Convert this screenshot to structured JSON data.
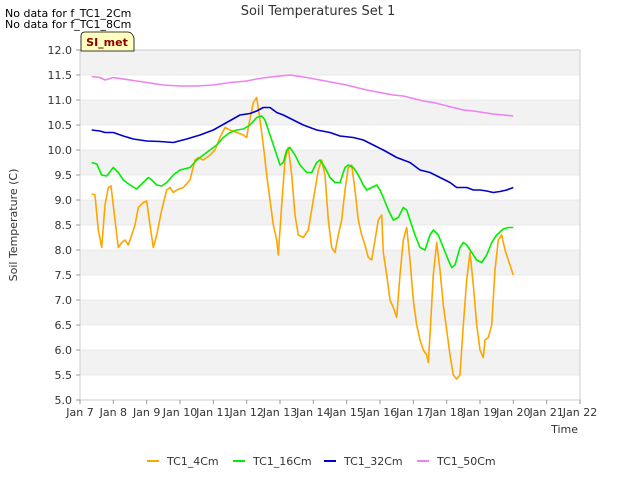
{
  "chart_data": {
    "type": "line",
    "title": "Soil Temperatures Set 1",
    "xlabel": "Time",
    "ylabel": "Soil Temperature (C)",
    "no_data_notes": [
      "No data for f_TC1_2Cm",
      "No data for f_TC1_8Cm"
    ],
    "site_badge": "SI_met",
    "xlim": [
      7,
      22
    ],
    "ylim": [
      5.0,
      12.0
    ],
    "x_ticks": [
      {
        "value": 7,
        "label": "Jan 7"
      },
      {
        "value": 8,
        "label": "Jan 8"
      },
      {
        "value": 9,
        "label": "Jan 9"
      },
      {
        "value": 10,
        "label": "Jan 10"
      },
      {
        "value": 11,
        "label": "Jan 11"
      },
      {
        "value": 12,
        "label": "Jan 12"
      },
      {
        "value": 13,
        "label": "Jan 13"
      },
      {
        "value": 14,
        "label": "Jan 14"
      },
      {
        "value": 15,
        "label": "Jan 15"
      },
      {
        "value": 16,
        "label": "Jan 16"
      },
      {
        "value": 17,
        "label": "Jan 17"
      },
      {
        "value": 18,
        "label": "Jan 18"
      },
      {
        "value": 19,
        "label": "Jan 19"
      },
      {
        "value": 20,
        "label": "Jan 20"
      },
      {
        "value": 21,
        "label": "Jan 21"
      },
      {
        "value": 22,
        "label": "Jan 22"
      }
    ],
    "y_ticks": [
      5.0,
      5.5,
      6.0,
      6.5,
      7.0,
      7.5,
      8.0,
      8.5,
      9.0,
      9.5,
      10.0,
      10.5,
      11.0,
      11.5,
      12.0
    ],
    "y_tick_labels": [
      "5.0",
      "5.5",
      "6.0",
      "6.5",
      "7.0",
      "7.5",
      "8.0",
      "8.5",
      "9.0",
      "9.5",
      "10.0",
      "10.5",
      "11.0",
      "11.5",
      "12.0"
    ],
    "colors": {
      "band": "#f2f2f2",
      "grid": "#dddddd",
      "axis": "#cccccc",
      "text": "#333333",
      "badge_fill": "#ffffc0",
      "badge_text": "#8b0000"
    },
    "series": [
      {
        "name": "TC1_4Cm",
        "color": "#ffa500",
        "points": [
          [
            7.35,
            9.12
          ],
          [
            7.45,
            9.1
          ],
          [
            7.55,
            8.4
          ],
          [
            7.65,
            8.05
          ],
          [
            7.75,
            8.9
          ],
          [
            7.85,
            9.25
          ],
          [
            7.93,
            9.28
          ],
          [
            8.05,
            8.6
          ],
          [
            8.15,
            8.05
          ],
          [
            8.25,
            8.15
          ],
          [
            8.35,
            8.2
          ],
          [
            8.45,
            8.1
          ],
          [
            8.55,
            8.3
          ],
          [
            8.65,
            8.5
          ],
          [
            8.75,
            8.85
          ],
          [
            8.9,
            8.95
          ],
          [
            9.0,
            8.98
          ],
          [
            9.1,
            8.5
          ],
          [
            9.2,
            8.05
          ],
          [
            9.3,
            8.3
          ],
          [
            9.45,
            8.8
          ],
          [
            9.6,
            9.2
          ],
          [
            9.7,
            9.25
          ],
          [
            9.8,
            9.15
          ],
          [
            9.9,
            9.2
          ],
          [
            10.1,
            9.25
          ],
          [
            10.3,
            9.4
          ],
          [
            10.45,
            9.8
          ],
          [
            10.55,
            9.85
          ],
          [
            10.7,
            9.8
          ],
          [
            10.9,
            9.9
          ],
          [
            11.05,
            10.0
          ],
          [
            11.2,
            10.25
          ],
          [
            11.35,
            10.45
          ],
          [
            11.5,
            10.4
          ],
          [
            11.7,
            10.35
          ],
          [
            11.9,
            10.3
          ],
          [
            12.0,
            10.25
          ],
          [
            12.05,
            10.45
          ],
          [
            12.2,
            10.95
          ],
          [
            12.3,
            11.05
          ],
          [
            12.4,
            10.6
          ],
          [
            12.5,
            10.1
          ],
          [
            12.6,
            9.5
          ],
          [
            12.7,
            9.0
          ],
          [
            12.8,
            8.5
          ],
          [
            12.9,
            8.2
          ],
          [
            12.95,
            7.9
          ],
          [
            13.05,
            8.9
          ],
          [
            13.15,
            9.8
          ],
          [
            13.25,
            10.05
          ],
          [
            13.35,
            9.5
          ],
          [
            13.45,
            8.7
          ],
          [
            13.55,
            8.3
          ],
          [
            13.7,
            8.25
          ],
          [
            13.85,
            8.4
          ],
          [
            14.0,
            9.0
          ],
          [
            14.15,
            9.6
          ],
          [
            14.25,
            9.8
          ],
          [
            14.35,
            9.5
          ],
          [
            14.45,
            8.6
          ],
          [
            14.55,
            8.05
          ],
          [
            14.65,
            7.95
          ],
          [
            14.75,
            8.3
          ],
          [
            14.85,
            8.6
          ],
          [
            14.95,
            9.2
          ],
          [
            15.05,
            9.65
          ],
          [
            15.15,
            9.7
          ],
          [
            15.25,
            9.2
          ],
          [
            15.35,
            8.6
          ],
          [
            15.45,
            8.3
          ],
          [
            15.55,
            8.1
          ],
          [
            15.65,
            7.85
          ],
          [
            15.75,
            7.8
          ],
          [
            15.85,
            8.2
          ],
          [
            15.95,
            8.6
          ],
          [
            16.05,
            8.7
          ],
          [
            16.1,
            7.95
          ],
          [
            16.2,
            7.5
          ],
          [
            16.3,
            7.0
          ],
          [
            16.4,
            6.85
          ],
          [
            16.5,
            6.65
          ],
          [
            16.6,
            7.5
          ],
          [
            16.7,
            8.2
          ],
          [
            16.8,
            8.45
          ],
          [
            16.9,
            7.8
          ],
          [
            17.0,
            7.0
          ],
          [
            17.1,
            6.5
          ],
          [
            17.2,
            6.2
          ],
          [
            17.3,
            6.0
          ],
          [
            17.4,
            5.9
          ],
          [
            17.45,
            5.75
          ],
          [
            17.5,
            6.3
          ],
          [
            17.6,
            7.5
          ],
          [
            17.7,
            8.15
          ],
          [
            17.8,
            7.6
          ],
          [
            17.9,
            6.9
          ],
          [
            18.0,
            6.4
          ],
          [
            18.1,
            5.9
          ],
          [
            18.2,
            5.5
          ],
          [
            18.3,
            5.42
          ],
          [
            18.4,
            5.5
          ],
          [
            18.5,
            6.5
          ],
          [
            18.6,
            7.4
          ],
          [
            18.7,
            7.95
          ],
          [
            18.8,
            7.3
          ],
          [
            18.9,
            6.5
          ],
          [
            19.0,
            6.0
          ],
          [
            19.1,
            5.85
          ],
          [
            19.15,
            6.2
          ],
          [
            19.25,
            6.25
          ],
          [
            19.35,
            6.5
          ],
          [
            19.45,
            7.6
          ],
          [
            19.55,
            8.2
          ],
          [
            19.65,
            8.3
          ],
          [
            19.75,
            8.0
          ],
          [
            19.85,
            7.8
          ],
          [
            20.0,
            7.5
          ]
        ]
      },
      {
        "name": "TC1_16Cm",
        "color": "#00ee00",
        "points": [
          [
            7.35,
            9.75
          ],
          [
            7.5,
            9.72
          ],
          [
            7.65,
            9.5
          ],
          [
            7.8,
            9.48
          ],
          [
            8.0,
            9.65
          ],
          [
            8.15,
            9.55
          ],
          [
            8.3,
            9.4
          ],
          [
            8.5,
            9.3
          ],
          [
            8.7,
            9.22
          ],
          [
            8.9,
            9.35
          ],
          [
            9.05,
            9.45
          ],
          [
            9.15,
            9.4
          ],
          [
            9.3,
            9.3
          ],
          [
            9.45,
            9.28
          ],
          [
            9.6,
            9.35
          ],
          [
            9.8,
            9.5
          ],
          [
            10.0,
            9.6
          ],
          [
            10.3,
            9.65
          ],
          [
            10.5,
            9.8
          ],
          [
            10.7,
            9.9
          ],
          [
            10.9,
            10.0
          ],
          [
            11.1,
            10.1
          ],
          [
            11.3,
            10.25
          ],
          [
            11.5,
            10.35
          ],
          [
            11.7,
            10.4
          ],
          [
            11.9,
            10.42
          ],
          [
            12.1,
            10.5
          ],
          [
            12.3,
            10.65
          ],
          [
            12.45,
            10.68
          ],
          [
            12.55,
            10.6
          ],
          [
            12.7,
            10.3
          ],
          [
            12.9,
            9.9
          ],
          [
            13.0,
            9.7
          ],
          [
            13.1,
            9.75
          ],
          [
            13.2,
            10.0
          ],
          [
            13.3,
            10.05
          ],
          [
            13.45,
            9.9
          ],
          [
            13.6,
            9.7
          ],
          [
            13.8,
            9.55
          ],
          [
            13.95,
            9.55
          ],
          [
            14.1,
            9.75
          ],
          [
            14.2,
            9.8
          ],
          [
            14.35,
            9.65
          ],
          [
            14.5,
            9.45
          ],
          [
            14.65,
            9.35
          ],
          [
            14.8,
            9.35
          ],
          [
            14.95,
            9.65
          ],
          [
            15.05,
            9.7
          ],
          [
            15.2,
            9.65
          ],
          [
            15.35,
            9.5
          ],
          [
            15.5,
            9.3
          ],
          [
            15.6,
            9.2
          ],
          [
            15.75,
            9.25
          ],
          [
            15.9,
            9.3
          ],
          [
            16.0,
            9.2
          ],
          [
            16.1,
            9.05
          ],
          [
            16.25,
            8.8
          ],
          [
            16.4,
            8.6
          ],
          [
            16.55,
            8.65
          ],
          [
            16.7,
            8.85
          ],
          [
            16.8,
            8.8
          ],
          [
            16.9,
            8.6
          ],
          [
            17.05,
            8.3
          ],
          [
            17.2,
            8.05
          ],
          [
            17.35,
            8.0
          ],
          [
            17.5,
            8.3
          ],
          [
            17.6,
            8.4
          ],
          [
            17.75,
            8.3
          ],
          [
            17.9,
            8.05
          ],
          [
            18.05,
            7.8
          ],
          [
            18.15,
            7.65
          ],
          [
            18.25,
            7.7
          ],
          [
            18.4,
            8.05
          ],
          [
            18.5,
            8.15
          ],
          [
            18.6,
            8.1
          ],
          [
            18.75,
            7.95
          ],
          [
            18.9,
            7.8
          ],
          [
            19.05,
            7.75
          ],
          [
            19.2,
            7.9
          ],
          [
            19.35,
            8.15
          ],
          [
            19.5,
            8.3
          ],
          [
            19.7,
            8.42
          ],
          [
            19.85,
            8.45
          ],
          [
            20.0,
            8.45
          ]
        ]
      },
      {
        "name": "TC1_32Cm",
        "color": "#0000cc",
        "points": [
          [
            7.35,
            10.4
          ],
          [
            7.6,
            10.38
          ],
          [
            7.75,
            10.35
          ],
          [
            8.0,
            10.35
          ],
          [
            8.3,
            10.28
          ],
          [
            8.6,
            10.22
          ],
          [
            9.0,
            10.18
          ],
          [
            9.4,
            10.17
          ],
          [
            9.8,
            10.15
          ],
          [
            10.2,
            10.22
          ],
          [
            10.6,
            10.3
          ],
          [
            11.0,
            10.4
          ],
          [
            11.4,
            10.55
          ],
          [
            11.8,
            10.7
          ],
          [
            12.1,
            10.73
          ],
          [
            12.3,
            10.78
          ],
          [
            12.5,
            10.85
          ],
          [
            12.7,
            10.85
          ],
          [
            12.9,
            10.75
          ],
          [
            13.1,
            10.7
          ],
          [
            13.4,
            10.6
          ],
          [
            13.7,
            10.5
          ],
          [
            13.9,
            10.45
          ],
          [
            14.1,
            10.4
          ],
          [
            14.5,
            10.35
          ],
          [
            14.8,
            10.28
          ],
          [
            15.2,
            10.25
          ],
          [
            15.5,
            10.2
          ],
          [
            15.8,
            10.1
          ],
          [
            16.1,
            10.0
          ],
          [
            16.5,
            9.85
          ],
          [
            16.9,
            9.75
          ],
          [
            17.2,
            9.6
          ],
          [
            17.5,
            9.55
          ],
          [
            17.8,
            9.45
          ],
          [
            18.1,
            9.35
          ],
          [
            18.3,
            9.25
          ],
          [
            18.6,
            9.25
          ],
          [
            18.8,
            9.2
          ],
          [
            19.0,
            9.2
          ],
          [
            19.2,
            9.18
          ],
          [
            19.4,
            9.15
          ],
          [
            19.6,
            9.17
          ],
          [
            19.8,
            9.2
          ],
          [
            20.0,
            9.25
          ]
        ]
      },
      {
        "name": "TC1_50Cm",
        "color": "#ee82ee",
        "points": [
          [
            7.35,
            11.47
          ],
          [
            7.6,
            11.45
          ],
          [
            7.75,
            11.4
          ],
          [
            8.0,
            11.45
          ],
          [
            8.5,
            11.4
          ],
          [
            9.0,
            11.35
          ],
          [
            9.5,
            11.3
          ],
          [
            10.0,
            11.28
          ],
          [
            10.5,
            11.28
          ],
          [
            11.0,
            11.3
          ],
          [
            11.5,
            11.35
          ],
          [
            12.0,
            11.38
          ],
          [
            12.3,
            11.42
          ],
          [
            12.6,
            11.45
          ],
          [
            13.0,
            11.48
          ],
          [
            13.3,
            11.5
          ],
          [
            13.5,
            11.48
          ],
          [
            13.8,
            11.45
          ],
          [
            14.2,
            11.4
          ],
          [
            14.6,
            11.35
          ],
          [
            15.0,
            11.3
          ],
          [
            15.3,
            11.25
          ],
          [
            15.6,
            11.2
          ],
          [
            16.0,
            11.15
          ],
          [
            16.4,
            11.1
          ],
          [
            16.7,
            11.08
          ],
          [
            17.0,
            11.03
          ],
          [
            17.3,
            10.98
          ],
          [
            17.6,
            10.95
          ],
          [
            17.9,
            10.9
          ],
          [
            18.2,
            10.85
          ],
          [
            18.5,
            10.8
          ],
          [
            18.8,
            10.78
          ],
          [
            19.1,
            10.75
          ],
          [
            19.4,
            10.72
          ],
          [
            19.7,
            10.7
          ],
          [
            20.0,
            10.68
          ]
        ]
      }
    ]
  }
}
